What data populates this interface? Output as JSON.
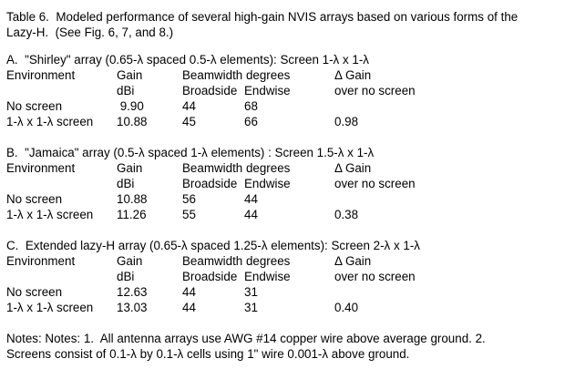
{
  "doc": {
    "title_lines": [
      "Table 6.  Modeled performance of several high-gain NVIS arrays based on various forms of the",
      "Lazy-H.  (See Fig. 6, 7, and 8.)"
    ],
    "columns": {
      "environment": "Environment",
      "gain": "Gain",
      "beamwidth": "Beamwidth degrees",
      "delta_gain": "Δ Gain",
      "gain_unit": "dBi",
      "broadside": "Broadside",
      "endwise": "Endwise",
      "over_no_screen": "over no screen"
    },
    "sections": [
      {
        "heading": "A.  \"Shirley\" array (0.65-λ spaced 0.5-λ elements): Screen 1-λ x 1-λ",
        "rows": [
          {
            "environment": "No screen",
            "gain": " 9.90",
            "broadside": "44",
            "endwise": "68",
            "delta": ""
          },
          {
            "environment": "1-λ x 1-λ screen",
            "gain": "10.88",
            "broadside": "45",
            "endwise": "66",
            "delta": "0.98"
          }
        ]
      },
      {
        "heading": "B.  \"Jamaica\" array (0.5-λ spaced 1-λ elements) : Screen 1.5-λ x 1-λ",
        "rows": [
          {
            "environment": "No screen",
            "gain": "10.88",
            "broadside": "56",
            "endwise": "44",
            "delta": ""
          },
          {
            "environment": "1-λ x 1-λ screen",
            "gain": "11.26",
            "broadside": "55",
            "endwise": "44",
            "delta": "0.38"
          }
        ]
      },
      {
        "heading": "C.  Extended lazy-H array (0.65-λ spaced 1.25-λ elements): Screen 2-λ x 1-λ",
        "rows": [
          {
            "environment": "No screen",
            "gain": "12.63",
            "broadside": "44",
            "endwise": "31",
            "delta": ""
          },
          {
            "environment": "1-λ x 1-λ screen",
            "gain": "13.03",
            "broadside": "44",
            "endwise": "31",
            "delta": "0.40"
          }
        ]
      }
    ],
    "notes_lines": [
      "Notes: Notes: 1.  All antenna arrays use AWG #14 copper wire above average ground. 2.",
      "Screens consist of 0.1-λ by 0.1-λ cells using 1\" wire 0.001-λ above ground."
    ]
  }
}
